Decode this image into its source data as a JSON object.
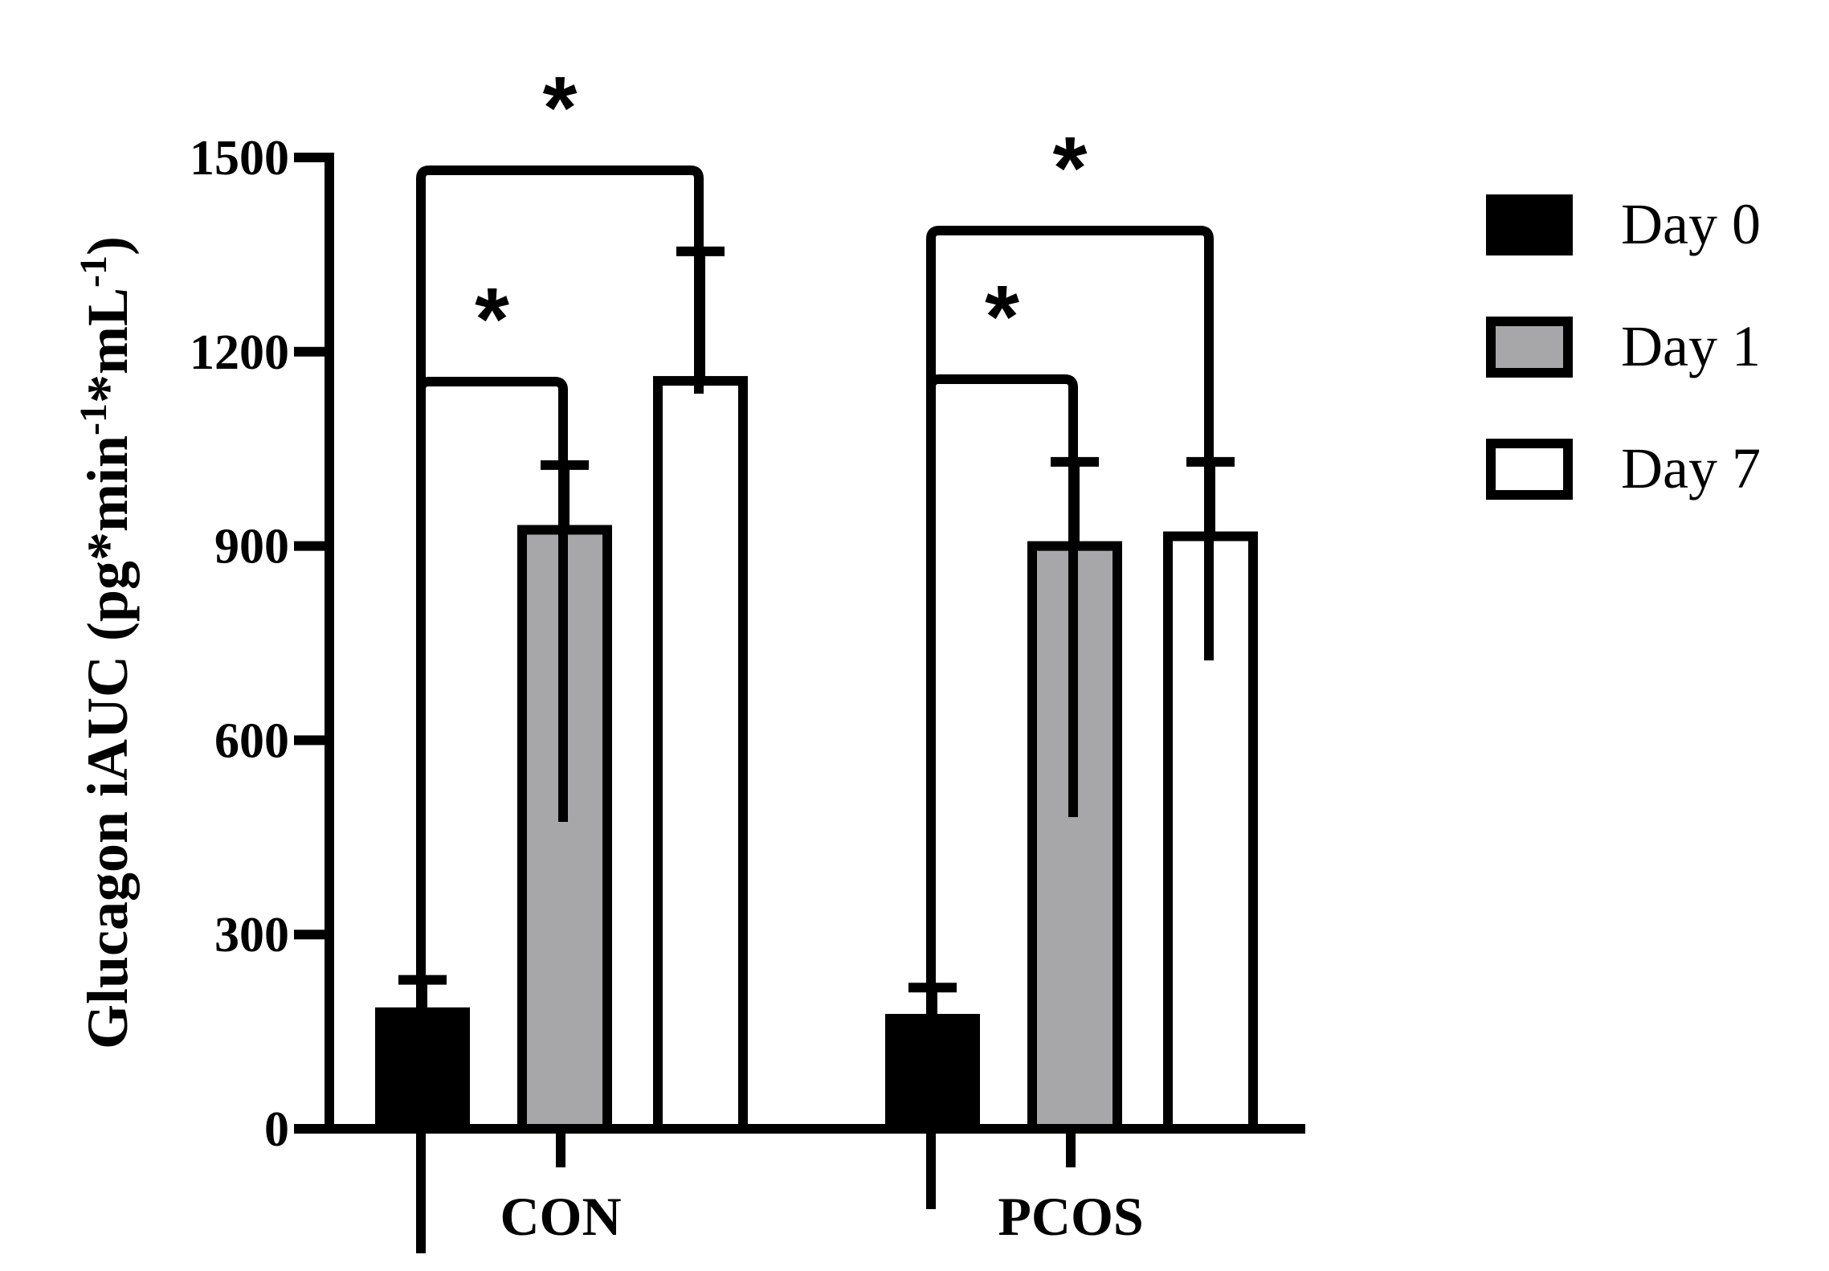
{
  "chart_data": {
    "type": "bar",
    "categories": [
      "CON",
      "PCOS"
    ],
    "series": [
      {
        "name": "Day 0",
        "values": [
          180,
          170
        ],
        "errors": [
          50,
          48
        ],
        "color": "#000000"
      },
      {
        "name": "Day 1",
        "values": [
          925,
          900
        ],
        "errors": [
          100,
          130
        ],
        "color": "#a7a7a9"
      },
      {
        "name": "Day 7",
        "values": [
          1155,
          915
        ],
        "errors": [
          200,
          115
        ],
        "color": "#ffffff"
      }
    ],
    "title": "",
    "xlabel": "",
    "ylabel": "Glucagon iAUC (pg*min-1*mL-1)",
    "ylabel_parts": [
      "Glucagon iAUC (pg*min",
      "-1",
      "*mL",
      "-1",
      ")"
    ],
    "yticks": [
      0,
      300,
      600,
      900,
      1200,
      1500
    ],
    "ylim": [
      0,
      1500
    ],
    "legend_position": "right",
    "significance": [
      {
        "category": "CON",
        "from_series": "Day 0",
        "to_series": "Day 1",
        "label": "*"
      },
      {
        "category": "CON",
        "from_series": "Day 0",
        "to_series": "Day 7",
        "label": "*"
      },
      {
        "category": "PCOS",
        "from_series": "Day 0",
        "to_series": "Day 1",
        "label": "*"
      },
      {
        "category": "PCOS",
        "from_series": "Day 0",
        "to_series": "Day 7",
        "label": "*"
      }
    ]
  }
}
